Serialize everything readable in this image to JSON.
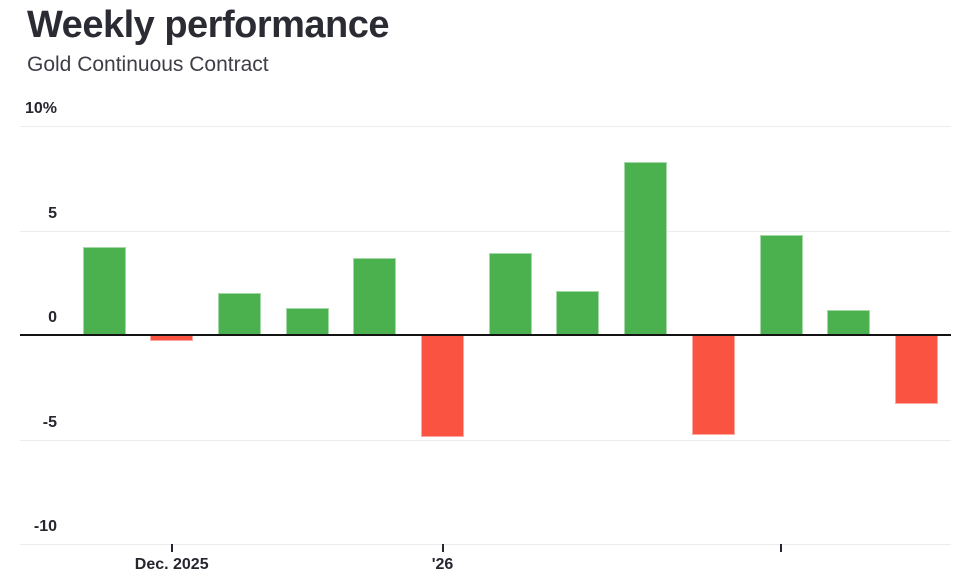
{
  "header": {
    "title": "Weekly performance",
    "subtitle": "Gold Continuous Contract"
  },
  "chart_data": {
    "type": "bar",
    "title": "Weekly performance",
    "subtitle": "Gold Continuous Contract",
    "unit": "%",
    "values": [
      4.2,
      -0.3,
      2.0,
      1.3,
      3.7,
      -4.9,
      3.9,
      2.1,
      8.3,
      -4.8,
      4.8,
      1.2,
      -3.3
    ],
    "x_ticks": [
      {
        "index": 1,
        "label": "Dec. 2025"
      },
      {
        "index": 5,
        "label": "'26"
      },
      {
        "index": 10,
        "label": ""
      }
    ],
    "y_ticks": [
      {
        "value": 10,
        "label": "10%"
      },
      {
        "value": 5,
        "label": "5"
      },
      {
        "value": 0,
        "label": "0"
      },
      {
        "value": -5,
        "label": "-5"
      },
      {
        "value": -10,
        "label": "-10"
      }
    ],
    "ylim": [
      -10,
      10
    ],
    "grid": "horizontal",
    "legend": "none",
    "colors": {
      "positive": "#4bb04e",
      "negative": "#fb5341",
      "gridline": "#ececec",
      "zero_line": "#131313",
      "axis_text": "#26262e"
    }
  }
}
